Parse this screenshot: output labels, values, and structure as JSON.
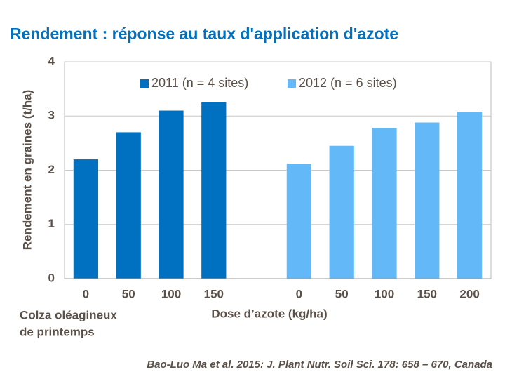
{
  "chart_data": {
    "type": "bar",
    "title": "Rendement : réponse au taux d'application d'azote",
    "x_label": "Dose d’azote (kg/ha)",
    "y_label": "Rendement en graines (t/ha)",
    "annotations": [
      "Colza oléagineux",
      "de printemps"
    ],
    "source": "Bao-Luo Ma et al. 2015: J. Plant Nutr. Soil Sci. 178: 658 – 670, Canada",
    "categories": [
      "0",
      "50",
      "100",
      "150",
      null,
      "0",
      "50",
      "100",
      "150",
      "200"
    ],
    "series": [
      {
        "name": "2011 (n = 4 sites)",
        "color": "#0070c0",
        "values": [
          2.2,
          2.7,
          3.1,
          3.25,
          null,
          null,
          null,
          null,
          null,
          null
        ]
      },
      {
        "name": "2012 (n = 6 sites)",
        "color": "#63b8f7",
        "values": [
          null,
          null,
          null,
          null,
          null,
          2.12,
          2.45,
          2.78,
          2.88,
          3.08
        ]
      }
    ],
    "ylim": [
      0,
      4
    ],
    "yticks": [
      0,
      1,
      2,
      3,
      4
    ],
    "grid": true,
    "legend": "top"
  }
}
